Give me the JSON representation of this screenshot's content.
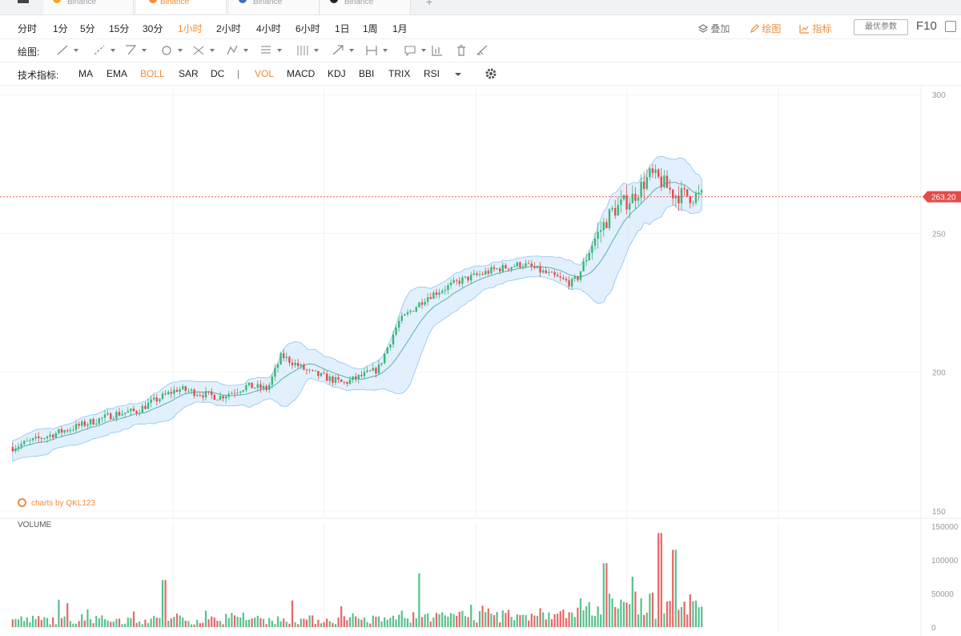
{
  "tabs": [
    {
      "exchange": "Binance",
      "dot_color": "#f5a623",
      "active": false
    },
    {
      "exchange": "Binance",
      "dot_color": "#f08c3a",
      "active": true
    },
    {
      "exchange": "Binance",
      "dot_color": "#3b6fb6",
      "active": false
    },
    {
      "exchange": "Binance",
      "dot_color": "#222222",
      "active": false
    }
  ],
  "tab_add_label": "+",
  "intervals": [
    "分时",
    "1分",
    "5分",
    "15分",
    "30分",
    "1小时",
    "2小时",
    "4小时",
    "6小时",
    "1日",
    "1周",
    "1月"
  ],
  "active_interval": "1小时",
  "toolbar_right": {
    "overlay": "叠加",
    "draw": "绘图",
    "indicators": "指标",
    "optimal_params": "最优参数",
    "f10": "F10"
  },
  "draw_label": "绘图:",
  "indicators_label": "技术指标:",
  "indicators": [
    "MA",
    "EMA",
    "BOLL",
    "SAR",
    "DC",
    "|",
    "VOL",
    "MACD",
    "KDJ",
    "BBI",
    "TRIX",
    "RSI"
  ],
  "active_indicators": [
    "BOLL",
    "VOL"
  ],
  "icons": [
    "layers-icon",
    "pencil-icon",
    "line-chart-icon",
    "fullscreen-icon",
    "settings-gear-icon",
    "line-tool-icon",
    "ray-tool-icon",
    "channel-tool-icon",
    "circle-tool-icon",
    "cross-tool-icon",
    "pattern-tool-icon",
    "fib-tool-icon",
    "gann-tool-icon",
    "arrow-tool-icon",
    "range-tool-icon",
    "note-tool-icon",
    "measure-icon",
    "trash-icon",
    "eraser-icon"
  ],
  "watermark": "charts by QKL123",
  "colors": {
    "up": "#3bb57a",
    "down": "#e24c4b",
    "band_fill": "#d7ebfb",
    "band_stroke": "#8cc4ef",
    "mid_line": "#5ab0b0",
    "accent": "#f08c3a",
    "price_line": "#f06060"
  },
  "chart_data": {
    "type": "candlestick",
    "price_axis": {
      "ticks": [
        150,
        200,
        250,
        300
      ],
      "range": [
        150,
        300
      ]
    },
    "current_price": "263.20",
    "current_price_value": 263.2,
    "volume_label": "VOLUME",
    "volume_axis": {
      "ticks": [
        "0",
        "50000",
        "100000",
        "150000"
      ],
      "range": [
        0,
        150000
      ]
    },
    "close_path": [
      [
        0,
        173
      ],
      [
        0.05,
        177
      ],
      [
        0.1,
        181
      ],
      [
        0.15,
        185
      ],
      [
        0.18,
        186
      ],
      [
        0.2,
        189
      ],
      [
        0.24,
        194
      ],
      [
        0.3,
        191
      ],
      [
        0.34,
        195
      ],
      [
        0.37,
        194
      ],
      [
        0.39,
        206
      ],
      [
        0.43,
        200
      ],
      [
        0.48,
        196
      ],
      [
        0.53,
        201
      ],
      [
        0.56,
        218
      ],
      [
        0.6,
        227
      ],
      [
        0.65,
        233
      ],
      [
        0.7,
        237
      ],
      [
        0.74,
        239
      ],
      [
        0.78,
        235
      ],
      [
        0.81,
        232
      ],
      [
        0.82,
        234
      ],
      [
        0.84,
        246
      ],
      [
        0.87,
        258
      ],
      [
        0.9,
        263
      ],
      [
        0.925,
        271
      ],
      [
        0.94,
        269
      ],
      [
        0.96,
        264
      ],
      [
        1.0,
        263.2
      ]
    ],
    "volume_peaks": [
      [
        0.22,
        70000
      ],
      [
        0.59,
        80000
      ],
      [
        0.86,
        95000
      ],
      [
        0.9,
        75000
      ],
      [
        0.94,
        140000
      ],
      [
        0.96,
        115000
      ]
    ]
  }
}
